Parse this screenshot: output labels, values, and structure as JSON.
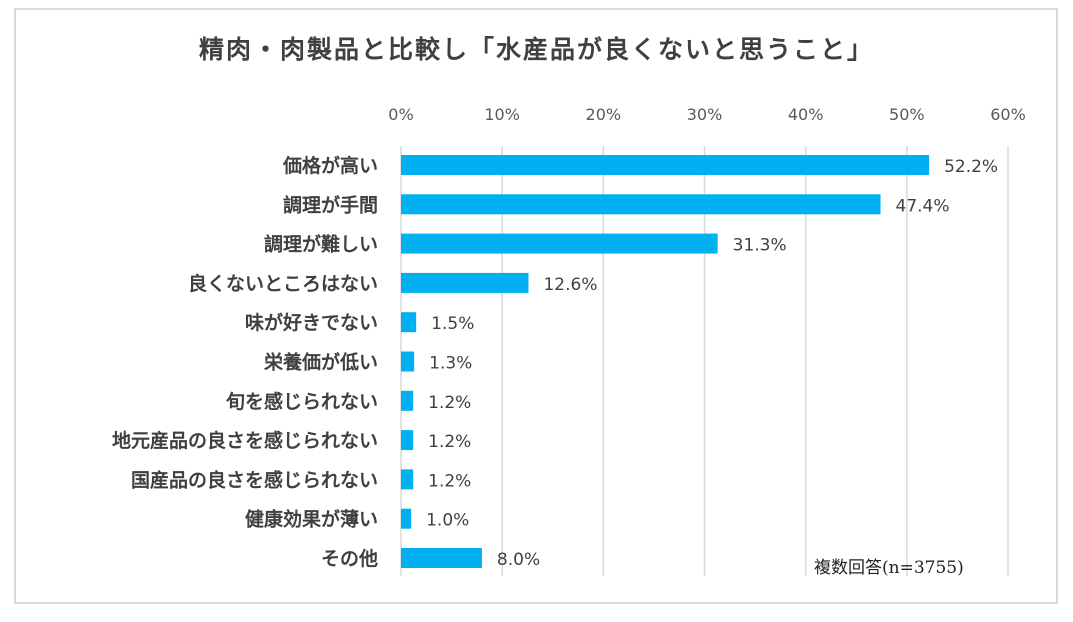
{
  "chart_data": {
    "type": "bar",
    "orientation": "horizontal",
    "title": "精肉・肉製品と比較し「水産品が良くないと思うこと」",
    "categories": [
      "価格が高い",
      "調理が手間",
      "調理が難しい",
      "良くないところはない",
      "味が好きでない",
      "栄養価が低い",
      "旬を感じられない",
      "地元産品の良さを感じられない",
      "国産品の良さを感じられない",
      "健康効果が薄い",
      "その他"
    ],
    "values": [
      52.2,
      47.4,
      31.3,
      12.6,
      1.5,
      1.3,
      1.2,
      1.2,
      1.2,
      1.0,
      8.0
    ],
    "value_labels": [
      "52.2%",
      "47.4%",
      "31.3%",
      "12.6%",
      "1.5%",
      "1.3%",
      "1.2%",
      "1.2%",
      "1.2%",
      "1.0%",
      "8.0%"
    ],
    "xlim": [
      0,
      60
    ],
    "xticks": [
      0,
      10,
      20,
      30,
      40,
      50,
      60
    ],
    "xtick_labels": [
      "0%",
      "10%",
      "20%",
      "30%",
      "40%",
      "50%",
      "60%"
    ],
    "xaxis_position": "top",
    "grid": true,
    "bar_color": "#00b0f0",
    "note": "複数回答(n=3755)"
  }
}
